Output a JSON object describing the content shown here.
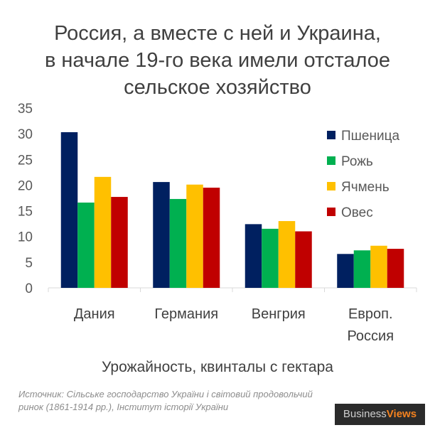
{
  "title_lines": [
    "Россия, а вместе с ней и Украина,",
    "в начале 19-го века имели отсталое",
    "сельское хозяйство"
  ],
  "chart_data": {
    "type": "bar",
    "title": "Россия, а вместе с ней и Украина, в начале 19-го века имели отсталое сельское хозяйство",
    "xlabel": "Урожайность, квинталы с гектара",
    "ylabel": "",
    "ylim": [
      0,
      35
    ],
    "yticks": [
      "0",
      "5",
      "10",
      "15",
      "20",
      "25",
      "30",
      "35"
    ],
    "categories": [
      [
        "Дания"
      ],
      [
        "Германия"
      ],
      [
        "Венгрия"
      ],
      [
        "Европ.",
        "Россия"
      ]
    ],
    "legend_position": "top-right",
    "grid": false,
    "series": [
      {
        "name": "Пшеница",
        "color": "#002060",
        "values": [
          30.3,
          20.6,
          12.4,
          6.6
        ]
      },
      {
        "name": "Рожь",
        "color": "#00b050",
        "values": [
          16.6,
          17.3,
          11.5,
          7.3
        ]
      },
      {
        "name": "Ячмень",
        "color": "#ffc000",
        "values": [
          21.6,
          20.1,
          13.0,
          8.2
        ]
      },
      {
        "name": "Овес",
        "color": "#c00000",
        "values": [
          17.7,
          19.5,
          11.0,
          7.6
        ]
      }
    ]
  },
  "source": "Источник: Сільське господарство України і світовий продовольчий ринок (1861-1914 рр.), Інститут історії України",
  "logo": {
    "business": "Business",
    "views": "Views"
  }
}
